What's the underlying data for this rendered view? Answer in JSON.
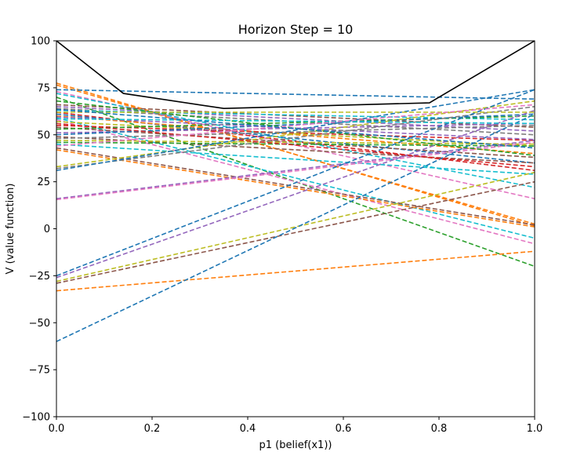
{
  "chart_data": {
    "type": "line",
    "title": "Horizon Step = 10",
    "xlabel": "p1 (belief(x1))",
    "ylabel": "V (value function)",
    "xlim": [
      0.0,
      1.0
    ],
    "ylim": [
      -100,
      100
    ],
    "xticks": [
      "0.0",
      "0.2",
      "0.4",
      "0.6",
      "0.8",
      "1.0"
    ],
    "yticks": [
      "100",
      "75",
      "50",
      "25",
      "0",
      "−25",
      "−50",
      "−75",
      "−100"
    ],
    "grid": false,
    "legend": "none",
    "value_function": {
      "color": "#000000",
      "style": "solid",
      "x": [
        0.0,
        0.14,
        0.35,
        0.78,
        1.0
      ],
      "y": [
        100,
        72,
        64,
        67,
        100
      ]
    },
    "alpha_vectors": [
      {
        "y0": 77.5,
        "y1": 1.5,
        "color": "#ff7f0e"
      },
      {
        "y0": 76.5,
        "y1": 2.5,
        "color": "#ff7f0e"
      },
      {
        "y0": 74,
        "y1": 69,
        "color": "#1f77b4"
      },
      {
        "y0": 73,
        "y1": 16,
        "color": "#e377c2"
      },
      {
        "y0": 72,
        "y1": 22,
        "color": "#17becf"
      },
      {
        "y0": 70,
        "y1": -20,
        "color": "#2ca02c"
      },
      {
        "y0": 66,
        "y1": 54,
        "color": "#8c564b"
      },
      {
        "y0": 65,
        "y1": 52,
        "color": "#9467bd"
      },
      {
        "y0": 64,
        "y1": 50,
        "color": "#7f7f7f"
      },
      {
        "y0": 63,
        "y1": 58,
        "color": "#17becf"
      },
      {
        "y0": 62,
        "y1": 31,
        "color": "#d62728"
      },
      {
        "y0": 61,
        "y1": 35,
        "color": "#1f77b4"
      },
      {
        "y0": 60,
        "y1": 40,
        "color": "#ff7f0e"
      },
      {
        "y0": 59,
        "y1": -5,
        "color": "#17becf"
      },
      {
        "y0": 58,
        "y1": -8,
        "color": "#e377c2"
      },
      {
        "y0": 57,
        "y1": 44,
        "color": "#bcbd22"
      },
      {
        "y0": 55,
        "y1": 47,
        "color": "#d62728"
      },
      {
        "y0": 54,
        "y1": 38,
        "color": "#8c564b"
      },
      {
        "y0": 53,
        "y1": 60,
        "color": "#2ca02c"
      },
      {
        "y0": 51,
        "y1": 56,
        "color": "#9467bd"
      },
      {
        "y0": 50,
        "y1": 61,
        "color": "#1f77b4"
      },
      {
        "y0": 49,
        "y1": 35,
        "color": "#8c564b"
      },
      {
        "y0": 47,
        "y1": 45,
        "color": "#bcbd22"
      },
      {
        "y0": 46,
        "y1": 44,
        "color": "#2ca02c"
      },
      {
        "y0": 45,
        "y1": 29,
        "color": "#17becf"
      },
      {
        "y0": 43,
        "y1": 2,
        "color": "#8c564b"
      },
      {
        "y0": 42,
        "y1": 1,
        "color": "#ff7f0e"
      },
      {
        "y0": 33,
        "y1": 68,
        "color": "#bcbd22"
      },
      {
        "y0": 32,
        "y1": 65,
        "color": "#7f7f7f"
      },
      {
        "y0": 31,
        "y1": 74,
        "color": "#1f77b4"
      },
      {
        "y0": 16,
        "y1": 47,
        "color": "#9467bd"
      },
      {
        "y0": 15.5,
        "y1": 46,
        "color": "#e377c2"
      },
      {
        "y0": -25,
        "y1": 74,
        "color": "#1f77b4"
      },
      {
        "y0": -26,
        "y1": 63,
        "color": "#9467bd"
      },
      {
        "y0": -28,
        "y1": 30,
        "color": "#bcbd22"
      },
      {
        "y0": -29,
        "y1": 25,
        "color": "#8c564b"
      },
      {
        "y0": -33,
        "y1": -12,
        "color": "#ff7f0e"
      },
      {
        "y0": -60,
        "y1": 61,
        "color": "#1f77b4"
      },
      {
        "y0": 68,
        "y1": 39,
        "color": "#2ca02c"
      },
      {
        "y0": 62,
        "y1": 62,
        "color": "#bcbd22"
      },
      {
        "y0": 59.5,
        "y1": 47.5,
        "color": "#9467bd"
      },
      {
        "y0": 58.5,
        "y1": 56,
        "color": "#17becf"
      },
      {
        "y0": 56,
        "y1": 33,
        "color": "#d62728"
      },
      {
        "y0": 48,
        "y1": 55,
        "color": "#7f7f7f"
      },
      {
        "y0": 44,
        "y1": 66,
        "color": "#e377c2"
      },
      {
        "y0": 63.5,
        "y1": 43,
        "color": "#1f77b4"
      }
    ]
  }
}
